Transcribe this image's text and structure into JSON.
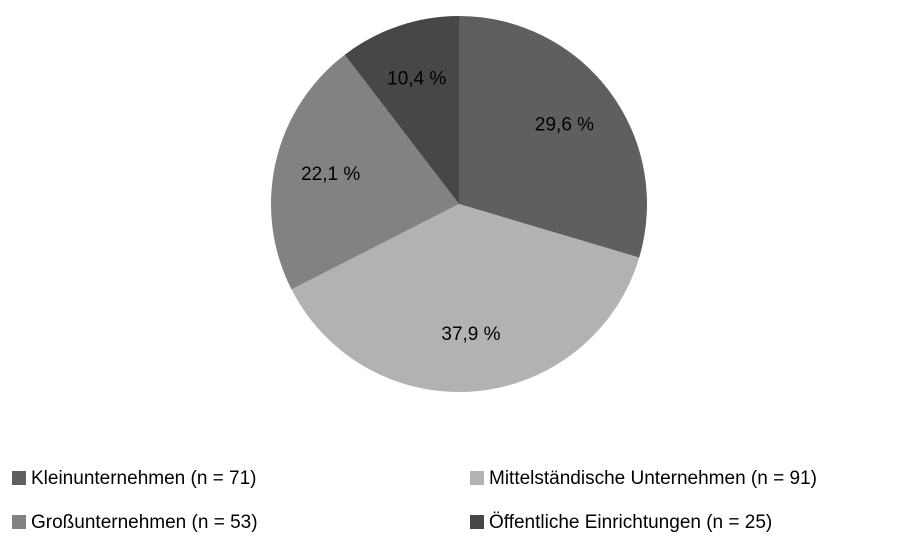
{
  "chart_data": {
    "type": "pie",
    "categories": [
      "Kleinunternehmen (n = 71)",
      "Mittelständische Unternehmen (n = 91)",
      "Großunternehmen (n = 53)",
      "Öffentliche Einrichtungen (n = 25)"
    ],
    "values": [
      29.6,
      37.9,
      22.1,
      10.4
    ],
    "value_labels": [
      "29,6 %",
      "37,9 %",
      "22,1 %",
      "10,4 %"
    ],
    "colors": [
      "#5f5f5f",
      "#b2b2b2",
      "#828282",
      "#474747"
    ]
  }
}
